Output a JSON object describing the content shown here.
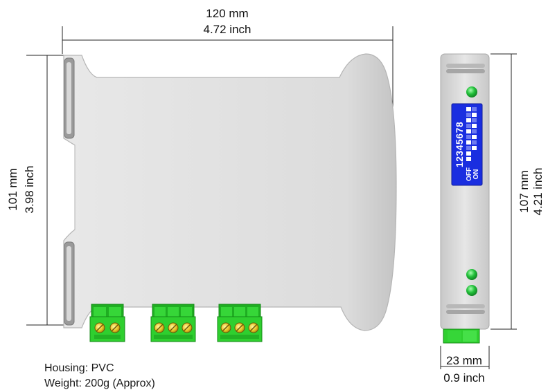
{
  "dimensions": {
    "width_mm": "120 mm",
    "width_inch": "4.72 inch",
    "height_mm": "101 mm",
    "height_inch": "3.98  inch",
    "side_height_mm": "107 mm",
    "side_height_inch": "4.21 inch",
    "side_width_mm": "23 mm",
    "side_width_inch": "0.9 inch"
  },
  "dip_switch": {
    "numbers": "12345678",
    "off_label": "OFF",
    "on_label": "ON",
    "color": "#1a2ee0"
  },
  "colors": {
    "housing": "#dcdcdc",
    "terminal": "#2fcf2f",
    "led": "#22c03a"
  },
  "specs": {
    "housing": "Housing: PVC",
    "weight": "Weight: 200g (Approx)"
  }
}
